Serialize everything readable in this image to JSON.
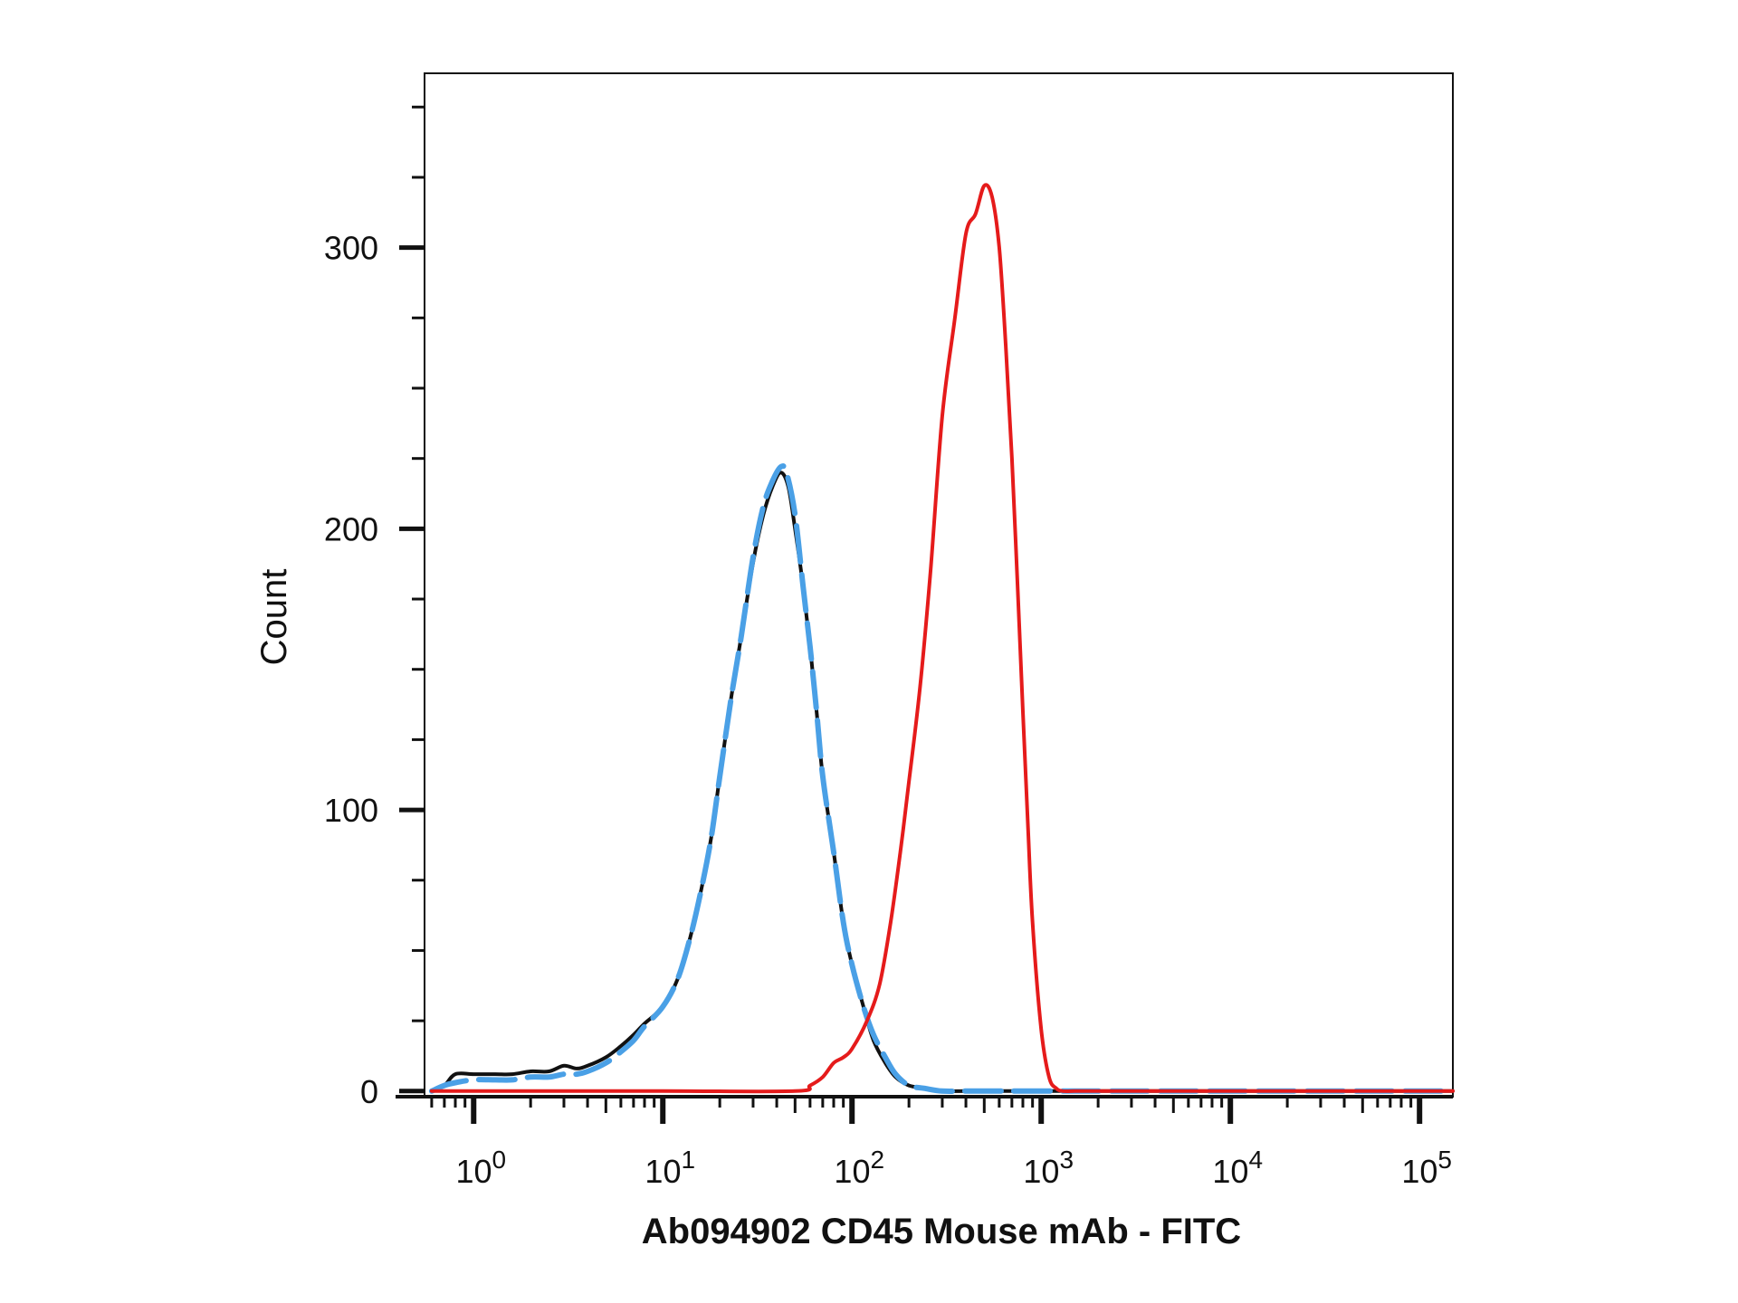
{
  "chart_data": {
    "type": "line",
    "title": "",
    "xlabel": "Ab094902 CD45 Mouse mAb - FITC",
    "ylabel": "Count",
    "x_scale": "log",
    "xlim": [
      0.55,
      150000
    ],
    "ylim": [
      -2,
      362
    ],
    "grid": false,
    "legend": "none",
    "x_ticks": [
      {
        "value": 1,
        "base": "10",
        "exp": "0"
      },
      {
        "value": 10,
        "base": "10",
        "exp": "1"
      },
      {
        "value": 100,
        "base": "10",
        "exp": "2"
      },
      {
        "value": 1000,
        "base": "10",
        "exp": "3"
      },
      {
        "value": 10000,
        "base": "10",
        "exp": "4"
      },
      {
        "value": 100000,
        "base": "10",
        "exp": "5"
      }
    ],
    "y_ticks": [
      {
        "value": 0,
        "label": "0"
      },
      {
        "value": 100,
        "label": "100"
      },
      {
        "value": 200,
        "label": "200"
      },
      {
        "value": 300,
        "label": "300"
      }
    ],
    "series": [
      {
        "color": "#111111",
        "dash": "solid",
        "x": [
          0.6,
          0.7,
          0.8,
          1.0,
          1.3,
          1.6,
          2.0,
          2.5,
          3.0,
          3.5,
          4.0,
          5.0,
          6.0,
          7.0,
          8.0,
          10,
          12,
          14,
          16,
          18,
          20,
          23,
          26,
          30,
          34,
          38,
          42,
          46,
          50,
          55,
          60,
          65,
          70,
          80,
          90,
          100,
          115,
          130,
          150,
          170,
          200,
          240,
          300,
          400,
          600,
          1000,
          2000,
          10000,
          100000,
          150000
        ],
        "y": [
          0,
          2,
          6,
          6,
          6,
          6,
          7,
          7,
          9,
          8,
          9,
          12,
          16,
          20,
          24,
          30,
          40,
          55,
          72,
          90,
          112,
          140,
          162,
          188,
          205,
          215,
          220,
          215,
          200,
          180,
          158,
          135,
          112,
          85,
          60,
          45,
          30,
          18,
          10,
          5,
          2,
          1,
          0,
          0,
          0,
          0,
          0,
          0,
          0,
          0
        ]
      },
      {
        "color": "#4aa0e6",
        "dash": "dashed",
        "x": [
          0.6,
          0.7,
          0.8,
          1.0,
          1.3,
          1.6,
          2.0,
          2.5,
          3.0,
          3.5,
          4.0,
          5.0,
          6.0,
          7.0,
          8.0,
          10,
          12,
          14,
          16,
          18,
          20,
          23,
          26,
          30,
          34,
          38,
          42,
          45,
          50,
          55,
          60,
          65,
          70,
          80,
          90,
          100,
          115,
          130,
          150,
          170,
          200,
          240,
          300,
          400,
          600,
          1000,
          2000,
          10000,
          100000,
          150000
        ],
        "y": [
          0,
          2,
          3,
          4,
          4,
          4,
          5,
          5,
          6,
          6,
          7,
          10,
          14,
          18,
          23,
          30,
          40,
          55,
          72,
          90,
          112,
          140,
          162,
          190,
          208,
          217,
          222,
          220,
          205,
          180,
          158,
          135,
          112,
          85,
          60,
          45,
          30,
          20,
          12,
          6,
          2,
          1,
          0,
          0,
          0,
          0,
          0,
          0,
          0,
          0
        ]
      },
      {
        "color": "#e51b1b",
        "dash": "solid",
        "x": [
          0.6,
          1.0,
          10,
          50,
          60,
          70,
          80,
          90,
          100,
          120,
          140,
          160,
          180,
          200,
          230,
          260,
          300,
          350,
          400,
          450,
          500,
          550,
          600,
          650,
          700,
          750,
          800,
          850,
          900,
          1000,
          1100,
          1200,
          1300,
          1500,
          1700,
          2000,
          2500,
          3000,
          5000,
          100000,
          150000
        ],
        "y": [
          0,
          0,
          0,
          0,
          2,
          5,
          10,
          12,
          15,
          25,
          38,
          60,
          85,
          110,
          145,
          185,
          240,
          275,
          305,
          312,
          322,
          318,
          300,
          265,
          225,
          180,
          135,
          95,
          60,
          22,
          5,
          1,
          0,
          0,
          0,
          0,
          0,
          0,
          0,
          0,
          0
        ]
      }
    ]
  }
}
